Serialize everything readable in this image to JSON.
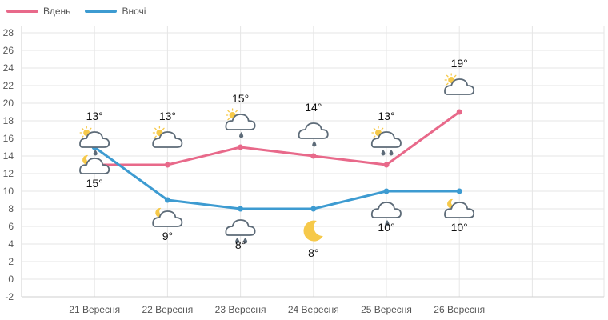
{
  "legend": {
    "day_label": "Вдень",
    "night_label": "Вночі"
  },
  "colors": {
    "day": "#e8698a",
    "night": "#3d9bd1",
    "grid": "#e6e6e6",
    "cloud_fill": "#ffffff",
    "cloud_stroke": "#5d6b78",
    "sun": "#f6c94a",
    "moon": "#f6c94a",
    "drop": "#5d6b78"
  },
  "chart_data": {
    "type": "line",
    "categories": [
      "21 Вересня",
      "22 Вересня",
      "23 Вересня",
      "24 Вересня",
      "25 Вересня",
      "26 Вересня"
    ],
    "ylim": [
      -2,
      28
    ],
    "yticks": [
      -2,
      0,
      2,
      4,
      6,
      8,
      10,
      12,
      14,
      16,
      18,
      20,
      22,
      24,
      26,
      28
    ],
    "grid": true,
    "legend_position": "top-left",
    "series": [
      {
        "name": "Вдень",
        "color_key": "day",
        "values": [
          13,
          13,
          15,
          14,
          13,
          19
        ],
        "labels": [
          "13°",
          "13°",
          "15°",
          "14°",
          "13°",
          "19°"
        ],
        "icons": [
          "partly-cloudy-day-light-rain-icon",
          "partly-cloudy-day-icon",
          "partly-cloudy-day-light-rain-icon",
          "cloud-light-rain-icon",
          "partly-cloudy-day-rain-icon",
          "partly-cloudy-day-icon"
        ]
      },
      {
        "name": "Вночі",
        "color_key": "night",
        "values": [
          15,
          9,
          8,
          8,
          10,
          10
        ],
        "labels": [
          "15°",
          "9°",
          "8°",
          "8°",
          "10°",
          "10°"
        ],
        "icons": [
          "partly-cloudy-night-icon",
          "partly-cloudy-night-icon",
          "cloud-rain-icon",
          "crescent-moon-icon",
          "cloud-light-rain-icon",
          "partly-cloudy-night-icon"
        ]
      }
    ]
  }
}
